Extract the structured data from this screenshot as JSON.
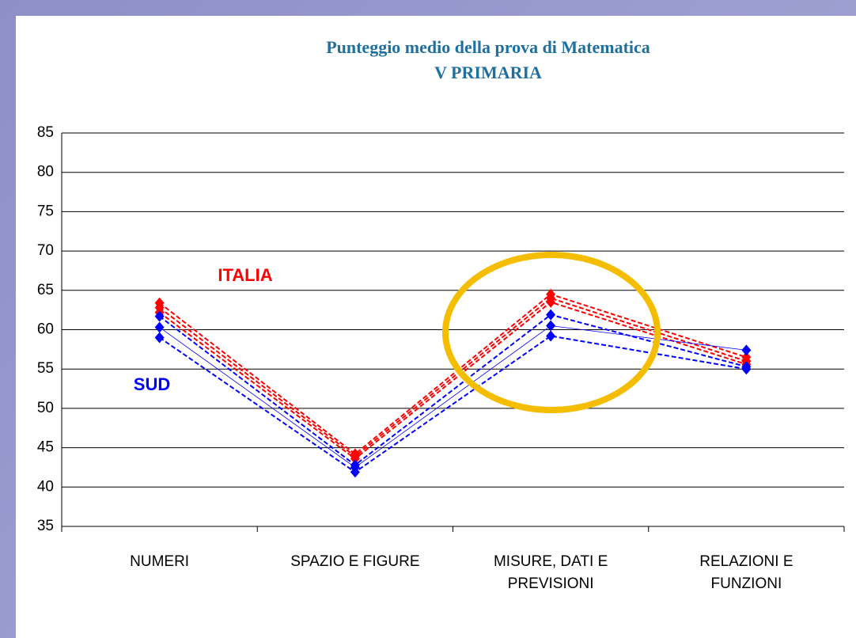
{
  "chart_data": {
    "type": "line",
    "title": "Punteggio medio della prova di Matematica",
    "subtitle": "V PRIMARIA",
    "categories": [
      [
        "NUMERI"
      ],
      [
        "SPAZIO E FIGURE"
      ],
      [
        "MISURE, DATI E",
        "PREVISIONI"
      ],
      [
        "RELAZIONI E",
        "FUNZIONI"
      ]
    ],
    "series": [
      {
        "color": "#ff0000",
        "line_style": "dashed",
        "values": [
          63.4,
          44.2,
          64.5,
          56.5
        ]
      },
      {
        "color": "#ff0000",
        "line_style": "dashed",
        "values": [
          62.8,
          43.9,
          64.0,
          56.0
        ]
      },
      {
        "color": "#ff0000",
        "line_style": "dashed",
        "values": [
          62.2,
          43.6,
          63.5,
          55.6
        ]
      },
      {
        "color": "#0000ff",
        "line_style": "dashed",
        "values": [
          61.7,
          42.8,
          61.9,
          55.3
        ]
      },
      {
        "color": "#0000ff",
        "line_style": "solid",
        "values": [
          60.3,
          42.5,
          60.5,
          57.4
        ]
      },
      {
        "color": "#0000ff",
        "line_style": "dashed",
        "values": [
          59.0,
          41.9,
          59.2,
          55.0
        ]
      }
    ],
    "annotations": [
      {
        "text": "ITALIA",
        "color": "#ff0000"
      },
      {
        "text": "SUD",
        "color": "#0000ff"
      }
    ],
    "ylim": [
      35,
      85
    ],
    "yticks": [
      35,
      40,
      45,
      50,
      55,
      60,
      65,
      70,
      75,
      80,
      85
    ],
    "grid": true
  }
}
